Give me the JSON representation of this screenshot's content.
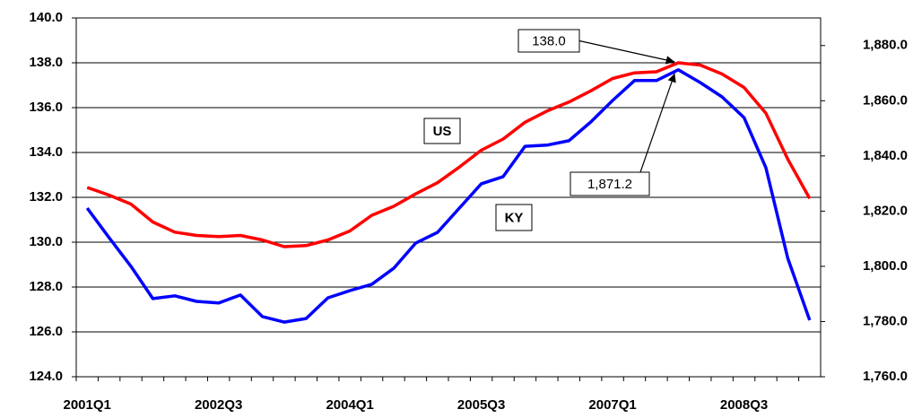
{
  "chart_data": {
    "type": "line",
    "categories": [
      "2001Q1",
      null,
      null,
      null,
      null,
      null,
      "2002Q3",
      null,
      null,
      null,
      null,
      null,
      "2004Q1",
      null,
      null,
      null,
      null,
      null,
      "2005Q3",
      null,
      null,
      null,
      null,
      null,
      "2007Q1",
      null,
      null,
      null,
      null,
      null,
      "2008Q3",
      null,
      null,
      null
    ],
    "series": [
      {
        "name": "US",
        "color": "#ff0000",
        "values": [
          132.44,
          132.1,
          131.7,
          130.9,
          130.45,
          130.3,
          130.25,
          130.3,
          130.1,
          129.8,
          129.85,
          130.1,
          130.5,
          131.2,
          131.6,
          132.15,
          132.65,
          133.35,
          134.1,
          134.6,
          135.35,
          135.85,
          136.25,
          136.75,
          137.3,
          137.55,
          137.6,
          138.0,
          137.9,
          137.5,
          136.9,
          135.75,
          133.7,
          131.95
        ]
      },
      {
        "name": "KY",
        "color": "#0000ff",
        "axis": "y2",
        "values": [
          1821.1,
          1810.4,
          1800.0,
          1788.3,
          1789.3,
          1787.3,
          1786.7,
          1789.6,
          1781.8,
          1779.8,
          1781.1,
          1788.6,
          1791.2,
          1793.5,
          1799.3,
          1808.4,
          1812.3,
          1821.1,
          1829.9,
          1832.5,
          1843.5,
          1843.9,
          1845.5,
          1852.3,
          1860.1,
          1867.3,
          1867.3,
          1871.2,
          1866.6,
          1861.4,
          1853.9,
          1835.7,
          1802.9,
          1780.5
        ]
      }
    ],
    "ylim": [
      124,
      140
    ],
    "yticks": [
      {
        "value": 124,
        "label": "124.0"
      },
      {
        "value": 126,
        "label": "126.0"
      },
      {
        "value": 128,
        "label": "128.0"
      },
      {
        "value": 130,
        "label": "130.0"
      },
      {
        "value": 132,
        "label": "132.0"
      },
      {
        "value": 134,
        "label": "134.0"
      },
      {
        "value": 136,
        "label": "136.0"
      },
      {
        "value": 138,
        "label": "138.0"
      },
      {
        "value": 140,
        "label": "140.0"
      }
    ],
    "y2lim": [
      1760,
      1890
    ],
    "y2ticks": [
      {
        "value": 1760,
        "label": "1,760.0"
      },
      {
        "value": 1780,
        "label": "1,780.0"
      },
      {
        "value": 1800,
        "label": "1,800.0"
      },
      {
        "value": 1820,
        "label": "1,820.0"
      },
      {
        "value": 1840,
        "label": "1,840.0"
      },
      {
        "value": 1860,
        "label": "1,860.0"
      },
      {
        "value": 1880,
        "label": "1,880.0"
      }
    ],
    "grid": true,
    "annotations": [
      {
        "text": "138.0"
      },
      {
        "text": "1,871.2"
      }
    ]
  }
}
